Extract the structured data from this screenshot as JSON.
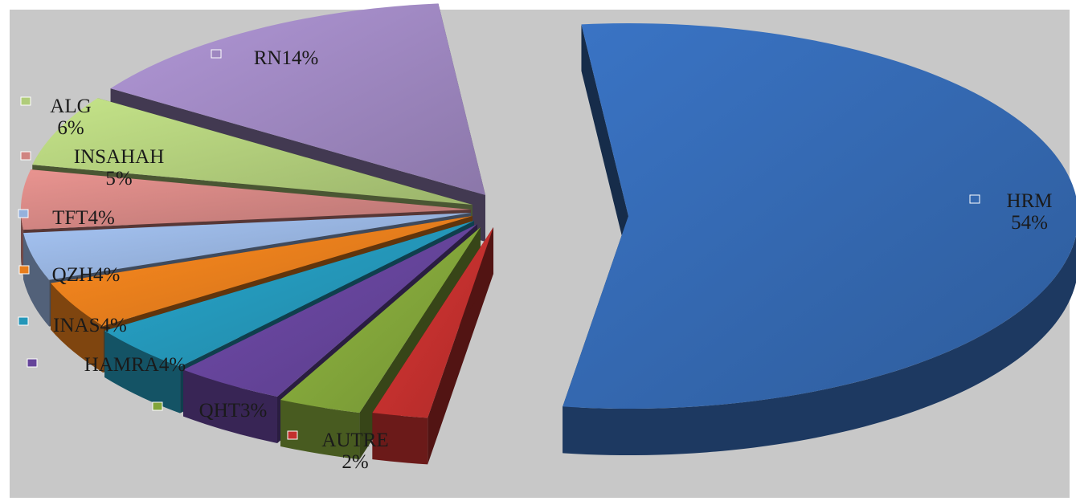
{
  "chart_data": {
    "type": "pie",
    "title": "",
    "exploded": true,
    "three_d": true,
    "legend": "data labels next to slices",
    "slices": [
      {
        "name": "HRM",
        "value": 54,
        "label_lines": [
          "HRM",
          "54%"
        ],
        "color": "#3468b0"
      },
      {
        "name": "AUTRE",
        "value": 2,
        "label_lines": [
          "AUTRE",
          "2%"
        ],
        "color": "#c3302e"
      },
      {
        "name": "QHT",
        "value": 3,
        "label_lines": [
          "QHT3%"
        ],
        "color": "#82a53a"
      },
      {
        "name": "HAMRA",
        "value": 4,
        "label_lines": [
          "HAMRA4%"
        ],
        "color": "#65449a"
      },
      {
        "name": "INAS",
        "value": 4,
        "label_lines": [
          "INAS4%"
        ],
        "color": "#2496b8"
      },
      {
        "name": "QZH",
        "value": 4,
        "label_lines": [
          "QZH4%"
        ],
        "color": "#e77d1c"
      },
      {
        "name": "TFT",
        "value": 4,
        "label_lines": [
          "TFT4%"
        ],
        "color": "#95b1dc"
      },
      {
        "name": "INSAHAH",
        "value": 5,
        "label_lines": [
          "INSAHAH",
          "5%"
        ],
        "color": "#d08481"
      },
      {
        "name": "ALG",
        "value": 6,
        "label_lines": [
          "ALG",
          "6%"
        ],
        "color": "#b0cc7a"
      },
      {
        "name": "RN",
        "value": 14,
        "label_lines": [
          "RN14%"
        ],
        "color": "#9e87c0"
      }
    ]
  }
}
